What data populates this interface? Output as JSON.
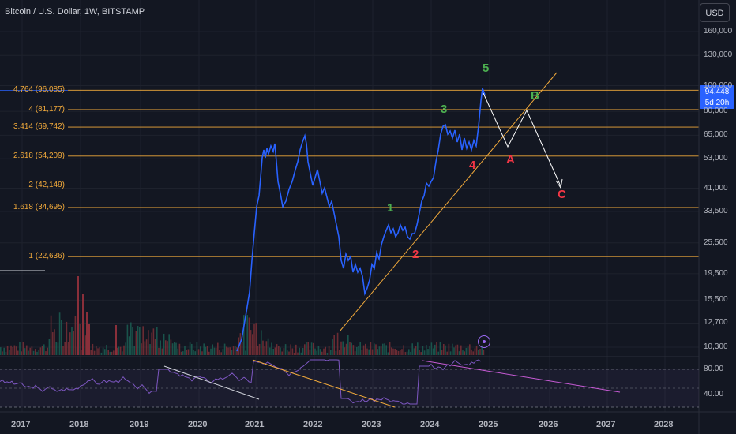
{
  "header": {
    "title": "Bitcoin / U.S. Dollar, 1W, BITSTAMP"
  },
  "currency_button": "USD",
  "price_tag": {
    "price": "94,448",
    "countdown": "5d 20h"
  },
  "price_axis": {
    "labels": [
      {
        "text": "160,000",
        "value": 160000
      },
      {
        "text": "130,000",
        "value": 130000
      },
      {
        "text": "100,000",
        "value": 100000
      },
      {
        "text": "80,000",
        "value": 80000
      },
      {
        "text": "65,000",
        "value": 65000
      },
      {
        "text": "53,000",
        "value": 53000
      },
      {
        "text": "41,000",
        "value": 41000
      },
      {
        "text": "33,500",
        "value": 33500
      },
      {
        "text": "25,500",
        "value": 25500
      },
      {
        "text": "19,500",
        "value": 19500
      },
      {
        "text": "15,500",
        "value": 15500
      },
      {
        "text": "12,700",
        "value": 12700
      },
      {
        "text": "10,300",
        "value": 10300
      }
    ]
  },
  "fib_levels": [
    {
      "label": "4.764 (96,085)",
      "price": 96085
    },
    {
      "label": "4 (81,177)",
      "price": 81177
    },
    {
      "label": "3.414 (69,742)",
      "price": 69742
    },
    {
      "label": "2.618 (54,209)",
      "price": 54209
    },
    {
      "label": "2 (42,149)",
      "price": 42149
    },
    {
      "label": "1.618 (34,695)",
      "price": 34695
    },
    {
      "label": "1 (22,636)",
      "price": 22636
    }
  ],
  "time_axis": [
    "2017",
    "2018",
    "2019",
    "2020",
    "2021",
    "2022",
    "2023",
    "2024",
    "2025",
    "2026",
    "2027",
    "2028"
  ],
  "waves": [
    {
      "label": "5",
      "color": "#4caf50"
    },
    {
      "label": "3",
      "color": "#4caf50"
    },
    {
      "label": "1",
      "color": "#4caf50"
    },
    {
      "label": "B",
      "color": "#4caf50"
    },
    {
      "label": "4",
      "color": "#f23645"
    },
    {
      "label": "2",
      "color": "#f23645"
    },
    {
      "label": "A",
      "color": "#f23645"
    },
    {
      "label": "C",
      "color": "#f23645"
    }
  ],
  "rsi": {
    "labels": [
      "80.00",
      "40.00"
    ]
  },
  "colors": {
    "price_line": "#2962ff",
    "fib": "#f0a93b",
    "rsi": "#7e57c2"
  }
}
